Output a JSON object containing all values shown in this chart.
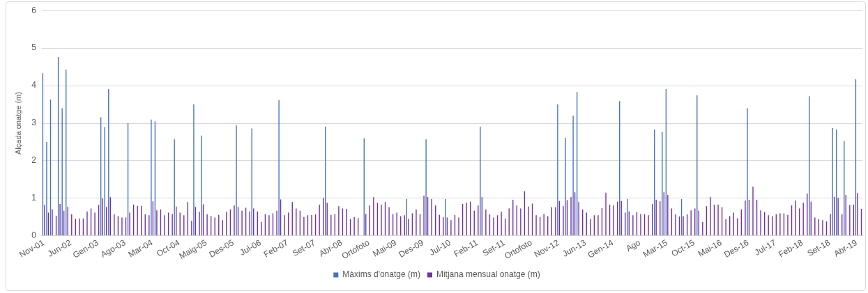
{
  "chart_data": {
    "type": "bar",
    "ylabel": "Alçada onatge (m)",
    "ylim": [
      0,
      6
    ],
    "yticks": [
      0,
      1,
      2,
      3,
      4,
      5,
      6
    ],
    "grid": "y",
    "legend": "bottom",
    "categories": [
      "Nov-01",
      null,
      null,
      null,
      null,
      null,
      null,
      "Jun-02",
      null,
      null,
      null,
      null,
      null,
      null,
      "Gen-03",
      null,
      null,
      null,
      null,
      null,
      null,
      "Ago-03",
      null,
      null,
      null,
      null,
      null,
      null,
      "Mar-04",
      null,
      null,
      null,
      null,
      null,
      null,
      "Oct-04",
      null,
      null,
      null,
      null,
      null,
      null,
      "Maig-05",
      null,
      null,
      null,
      null,
      null,
      null,
      "Des-05",
      null,
      null,
      null,
      null,
      null,
      null,
      "Jul-06",
      null,
      null,
      null,
      null,
      null,
      null,
      "Feb-07",
      null,
      null,
      null,
      null,
      null,
      null,
      "Set-07",
      null,
      null,
      null,
      null,
      null,
      null,
      "Abr-08",
      null,
      null,
      null,
      null,
      null,
      null,
      "Ortofoto",
      null,
      null,
      null,
      null,
      null,
      null,
      "Mai-09",
      null,
      null,
      null,
      null,
      null,
      null,
      "Des-09",
      null,
      null,
      null,
      null,
      null,
      null,
      "Jul-10",
      null,
      null,
      null,
      null,
      null,
      null,
      "Feb-11",
      null,
      null,
      null,
      null,
      null,
      null,
      "Set-11",
      null,
      null,
      null,
      null,
      null,
      null,
      "Ortofoto",
      null,
      null,
      null,
      null,
      null,
      null,
      "Nov-12",
      null,
      null,
      null,
      null,
      null,
      null,
      "Jun-13",
      null,
      null,
      null,
      null,
      null,
      null,
      "Gen-14",
      null,
      null,
      null,
      null,
      null,
      null,
      "Ago",
      null,
      null,
      null,
      null,
      null,
      null,
      "Mar-15",
      null,
      null,
      null,
      null,
      null,
      null,
      "Oct-15",
      null,
      null,
      null,
      null,
      null,
      null,
      "Mai-16",
      null,
      null,
      null,
      null,
      null,
      null,
      "Des-16",
      null,
      null,
      null,
      null,
      null,
      null,
      "Jul-17",
      null,
      null,
      null,
      null,
      null,
      null,
      "Feb-18",
      null,
      null,
      null,
      null,
      null,
      null,
      "Set-18",
      null,
      null,
      null,
      null,
      null,
      null,
      "Abr-19",
      null
    ],
    "series": [
      {
        "name": "Màxims d'onatge (m)",
        "color": "#4472c4",
        "values": [
          4.33,
          2.5,
          3.63,
          null,
          4.76,
          3.4,
          4.43,
          null,
          null,
          null,
          null,
          null,
          null,
          null,
          null,
          3.16,
          2.9,
          3.91,
          null,
          null,
          null,
          null,
          3.0,
          null,
          null,
          null,
          null,
          null,
          3.1,
          3.05,
          null,
          null,
          null,
          null,
          2.57,
          null,
          null,
          null,
          null,
          3.5,
          null,
          2.67,
          null,
          null,
          null,
          null,
          null,
          null,
          null,
          null,
          2.94,
          null,
          null,
          null,
          2.86,
          null,
          null,
          null,
          null,
          null,
          null,
          3.61,
          null,
          null,
          null,
          null,
          null,
          null,
          null,
          null,
          null,
          null,
          null,
          2.91,
          null,
          null,
          null,
          null,
          null,
          null,
          null,
          null,
          null,
          2.6,
          null,
          null,
          null,
          null,
          null,
          null,
          null,
          null,
          null,
          null,
          0.98,
          null,
          null,
          null,
          null,
          2.57,
          null,
          null,
          null,
          null,
          0.98,
          null,
          null,
          null,
          null,
          null,
          null,
          null,
          null,
          2.91,
          null,
          null,
          null,
          null,
          null,
          null,
          null,
          null,
          null,
          null,
          null,
          null,
          null,
          null,
          null,
          null,
          null,
          null,
          null,
          3.5,
          null,
          2.61,
          null,
          3.2,
          3.83,
          null,
          null,
          null,
          null,
          null,
          null,
          null,
          null,
          null,
          null,
          3.59,
          null,
          0.98,
          null,
          null,
          null,
          null,
          null,
          null,
          2.83,
          null,
          2.77,
          3.91,
          null,
          null,
          null,
          0.98,
          null,
          null,
          null,
          3.74,
          null,
          null,
          null,
          null,
          null,
          null,
          null,
          null,
          null,
          null,
          null,
          null,
          3.4,
          null,
          null,
          null,
          null,
          null,
          null,
          null,
          null,
          null,
          null,
          null,
          null,
          null,
          null,
          null,
          3.72,
          null,
          null,
          null,
          null,
          null,
          2.87,
          2.83,
          null,
          2.52,
          null,
          null,
          4.17,
          null
        ]
      },
      {
        "name": "Mitjana mensual onatge (m)",
        "color": "#7030a0",
        "values": [
          0.82,
          0.62,
          0.7,
          0.53,
          0.85,
          0.67,
          0.77,
          0.57,
          0.45,
          0.46,
          0.46,
          0.65,
          0.73,
          0.62,
          0.82,
          1.0,
          0.77,
          1.03,
          0.57,
          0.52,
          0.49,
          0.49,
          0.62,
          0.83,
          0.8,
          0.8,
          0.57,
          0.55,
          0.92,
          0.68,
          0.7,
          0.55,
          0.62,
          0.58,
          0.78,
          0.62,
          0.55,
          0.9,
          0.4,
          0.77,
          0.64,
          0.84,
          0.57,
          0.53,
          0.49,
          0.56,
          0.42,
          0.64,
          0.7,
          0.81,
          0.77,
          0.67,
          0.75,
          0.65,
          0.73,
          0.65,
          0.37,
          0.58,
          0.55,
          0.6,
          0.67,
          0.97,
          0.55,
          0.62,
          0.9,
          0.73,
          0.67,
          0.5,
          0.55,
          0.56,
          0.57,
          0.83,
          1.01,
          0.88,
          0.56,
          0.58,
          0.79,
          0.73,
          0.72,
          0.44,
          0.5,
          0.47,
          null,
          0.58,
          0.81,
          1.03,
          0.88,
          0.83,
          0.9,
          0.76,
          0.58,
          0.62,
          0.52,
          0.55,
          0.45,
          0.6,
          0.7,
          0.58,
          1.07,
          1.03,
          0.98,
          0.81,
          0.56,
          0.5,
          0.49,
          0.42,
          0.56,
          0.49,
          0.85,
          0.88,
          0.91,
          0.67,
          0.81,
          1.03,
          0.7,
          0.57,
          0.49,
          0.55,
          0.64,
          0.46,
          0.73,
          0.96,
          0.81,
          0.73,
          1.19,
          0.78,
          0.86,
          0.55,
          0.5,
          0.58,
          0.52,
          0.76,
          0.76,
          0.93,
          0.79,
          0.95,
          1.03,
          1.16,
          0.9,
          0.7,
          0.62,
          0.44,
          0.55,
          0.55,
          0.74,
          1.15,
          0.83,
          0.81,
          0.91,
          0.93,
          0.62,
          0.65,
          0.55,
          0.63,
          0.58,
          0.57,
          0.55,
          0.85,
          0.96,
          0.92,
          1.16,
          1.09,
          0.73,
          0.57,
          0.51,
          0.52,
          0.57,
          0.68,
          0.73,
          0.67,
          0.37,
          0.79,
          1.04,
          0.83,
          0.83,
          0.76,
          0.44,
          0.52,
          0.62,
          0.47,
          0.7,
          0.94,
          0.96,
          1.31,
          0.96,
          0.68,
          0.63,
          0.55,
          0.52,
          0.57,
          0.6,
          0.6,
          0.56,
          0.81,
          0.94,
          0.73,
          0.88,
          1.13,
          0.91,
          0.49,
          0.44,
          0.42,
          0.38,
          0.58,
          1.04,
          1.01,
          0.57,
          1.09,
          0.82,
          0.83,
          1.14,
          0.72
        ]
      }
    ]
  }
}
